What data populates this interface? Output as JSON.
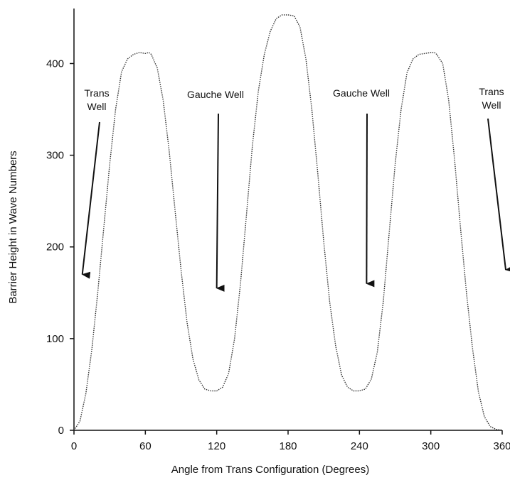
{
  "chart_data": {
    "type": "line",
    "title": "",
    "xlabel": "Angle from Trans Configuration (Degrees)",
    "ylabel": "Barrier Height in Wave Numbers",
    "xlim": [
      0,
      360
    ],
    "ylim": [
      0,
      460
    ],
    "x_ticks": [
      0,
      60,
      120,
      180,
      240,
      300,
      360
    ],
    "y_ticks": [
      0,
      100,
      200,
      300,
      400
    ],
    "grid": false,
    "legend": "none",
    "line_color": "#333333",
    "line_style": "dotted",
    "series": [
      {
        "x": [
          0,
          5,
          10,
          15,
          20,
          25,
          30,
          35,
          40,
          45,
          50,
          55,
          60,
          63,
          65,
          70,
          75,
          80,
          85,
          90,
          95,
          100,
          105,
          110,
          115,
          120,
          125,
          130,
          135,
          140,
          145,
          150,
          155,
          160,
          165,
          170,
          175,
          180,
          185,
          190,
          195,
          200,
          205,
          210,
          215,
          220,
          225,
          230,
          235,
          240,
          245,
          250,
          255,
          260,
          265,
          270,
          275,
          280,
          285,
          290,
          295,
          300,
          303,
          305,
          310,
          315,
          320,
          325,
          330,
          335,
          340,
          345,
          350,
          355,
          360
        ],
        "y": [
          0,
          10,
          40,
          88,
          150,
          220,
          290,
          350,
          391,
          405,
          410,
          412,
          411,
          412,
          410,
          395,
          360,
          305,
          240,
          175,
          118,
          78,
          55,
          45,
          43,
          43,
          47,
          62,
          100,
          160,
          235,
          310,
          370,
          410,
          435,
          449,
          453,
          453,
          452,
          440,
          405,
          350,
          280,
          205,
          140,
          92,
          60,
          47,
          43,
          43,
          45,
          56,
          85,
          140,
          215,
          290,
          350,
          390,
          405,
          410,
          411,
          412,
          412,
          410,
          400,
          360,
          295,
          220,
          150,
          90,
          42,
          15,
          4,
          1,
          0
        ]
      }
    ],
    "annotations": [
      {
        "lines": [
          "Trans",
          "Well"
        ],
        "points_to": [
          7,
          170
        ]
      },
      {
        "lines": [
          "Gauche Well"
        ],
        "points_to": [
          120,
          155
        ]
      },
      {
        "lines": [
          "Gauche Well"
        ],
        "points_to": [
          246,
          160
        ]
      },
      {
        "lines": [
          "Trans",
          "Well"
        ],
        "points_to": [
          363,
          175
        ]
      }
    ]
  }
}
